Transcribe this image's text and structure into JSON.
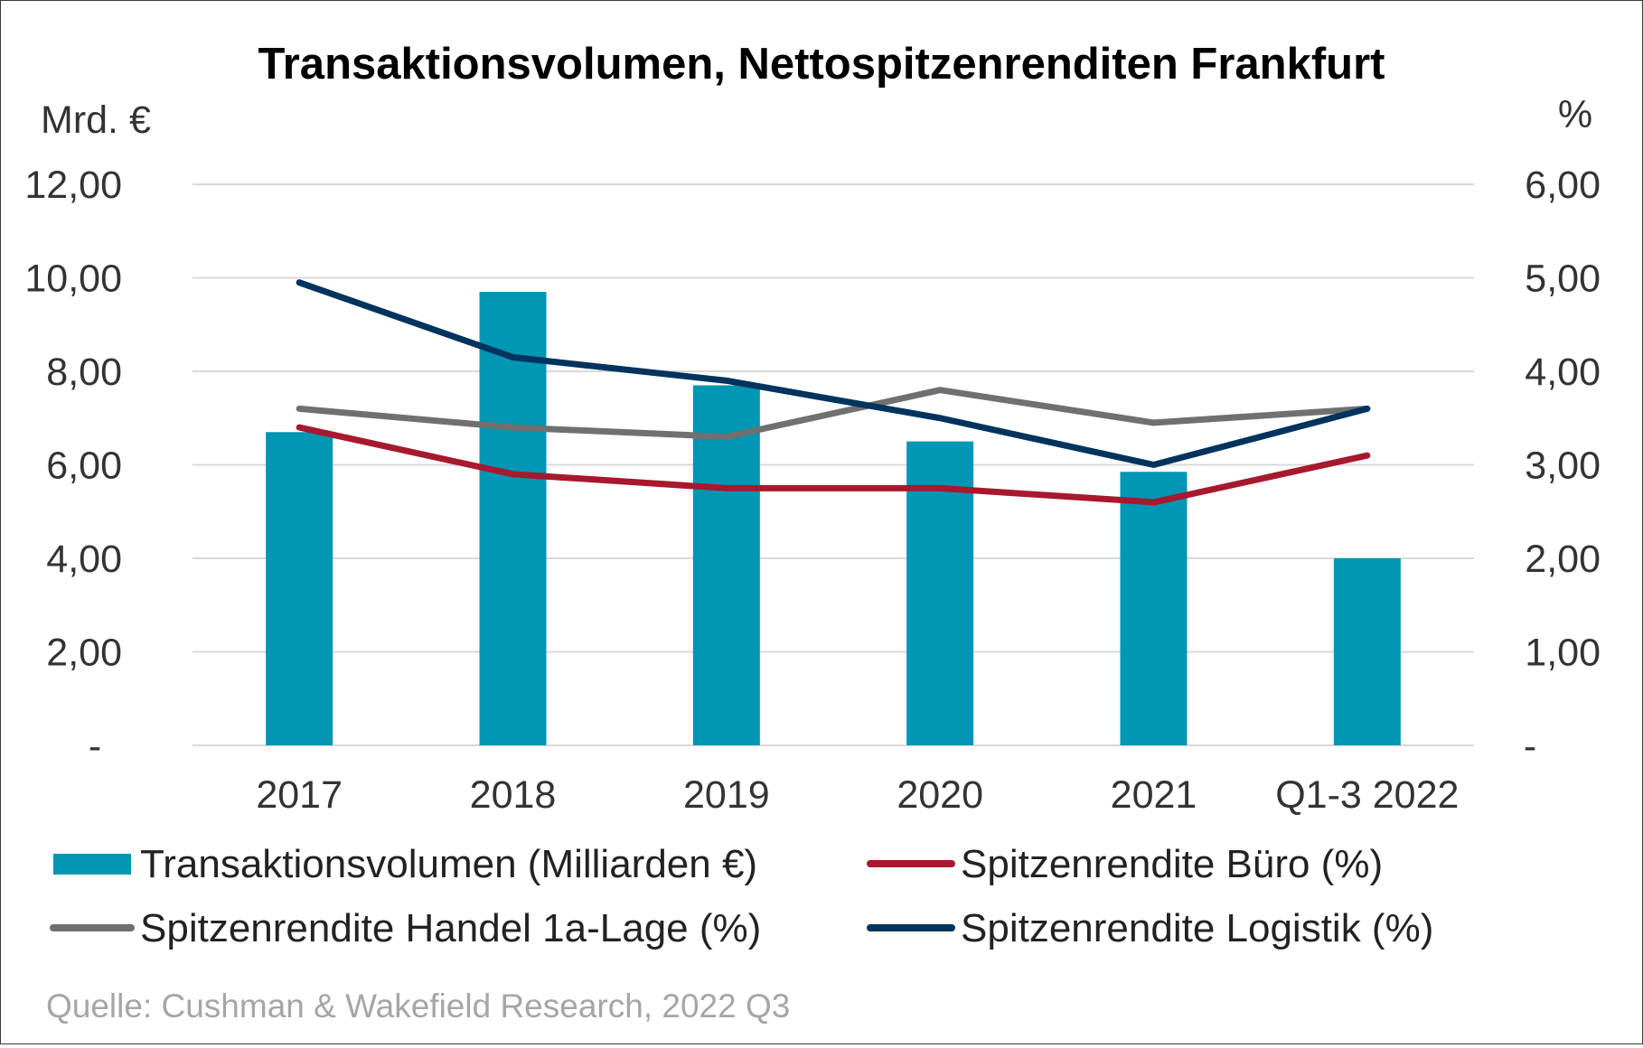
{
  "chart_data": {
    "type": "bar",
    "title": "Transaktionsvolumen, Nettospitzenrenditen Frankfurt",
    "y_left_label": "Mrd. €",
    "y_right_label": "%",
    "y_left_range": [
      0,
      12
    ],
    "y_right_range": [
      0,
      6
    ],
    "y_left_ticks": [
      "-",
      "2,00",
      "4,00",
      "6,00",
      "8,00",
      "10,00",
      "12,00"
    ],
    "y_right_ticks": [
      "-",
      "1,00",
      "2,00",
      "3,00",
      "4,00",
      "5,00",
      "6,00"
    ],
    "grid": true,
    "categories": [
      "2017",
      "2018",
      "2019",
      "2020",
      "2021",
      "Q1-3 2022"
    ],
    "series": [
      {
        "name": "Transaktionsvolumen (Milliarden €)",
        "kind": "bar",
        "axis": "left",
        "color": "#0096B4",
        "values": [
          6.7,
          9.7,
          7.7,
          6.5,
          5.85,
          4.0
        ]
      },
      {
        "name": "Spitzenrendite Büro (%)",
        "kind": "line",
        "axis": "right",
        "color": "#A6192E",
        "values": [
          3.4,
          2.9,
          2.75,
          2.75,
          2.6,
          3.1
        ]
      },
      {
        "name": "Spitzenrendite Handel 1a-Lage (%)",
        "kind": "line",
        "axis": "right",
        "color": "#707070",
        "values": [
          3.6,
          3.4,
          3.3,
          3.8,
          3.45,
          3.6
        ]
      },
      {
        "name": "Spitzenrendite Logistik (%)",
        "kind": "line",
        "axis": "right",
        "color": "#00335E",
        "values": [
          4.95,
          4.15,
          3.9,
          3.5,
          3.0,
          3.6
        ]
      }
    ],
    "legend_position": "bottom",
    "source": "Quelle: Cushman & Wakefield Research, 2022 Q3"
  }
}
